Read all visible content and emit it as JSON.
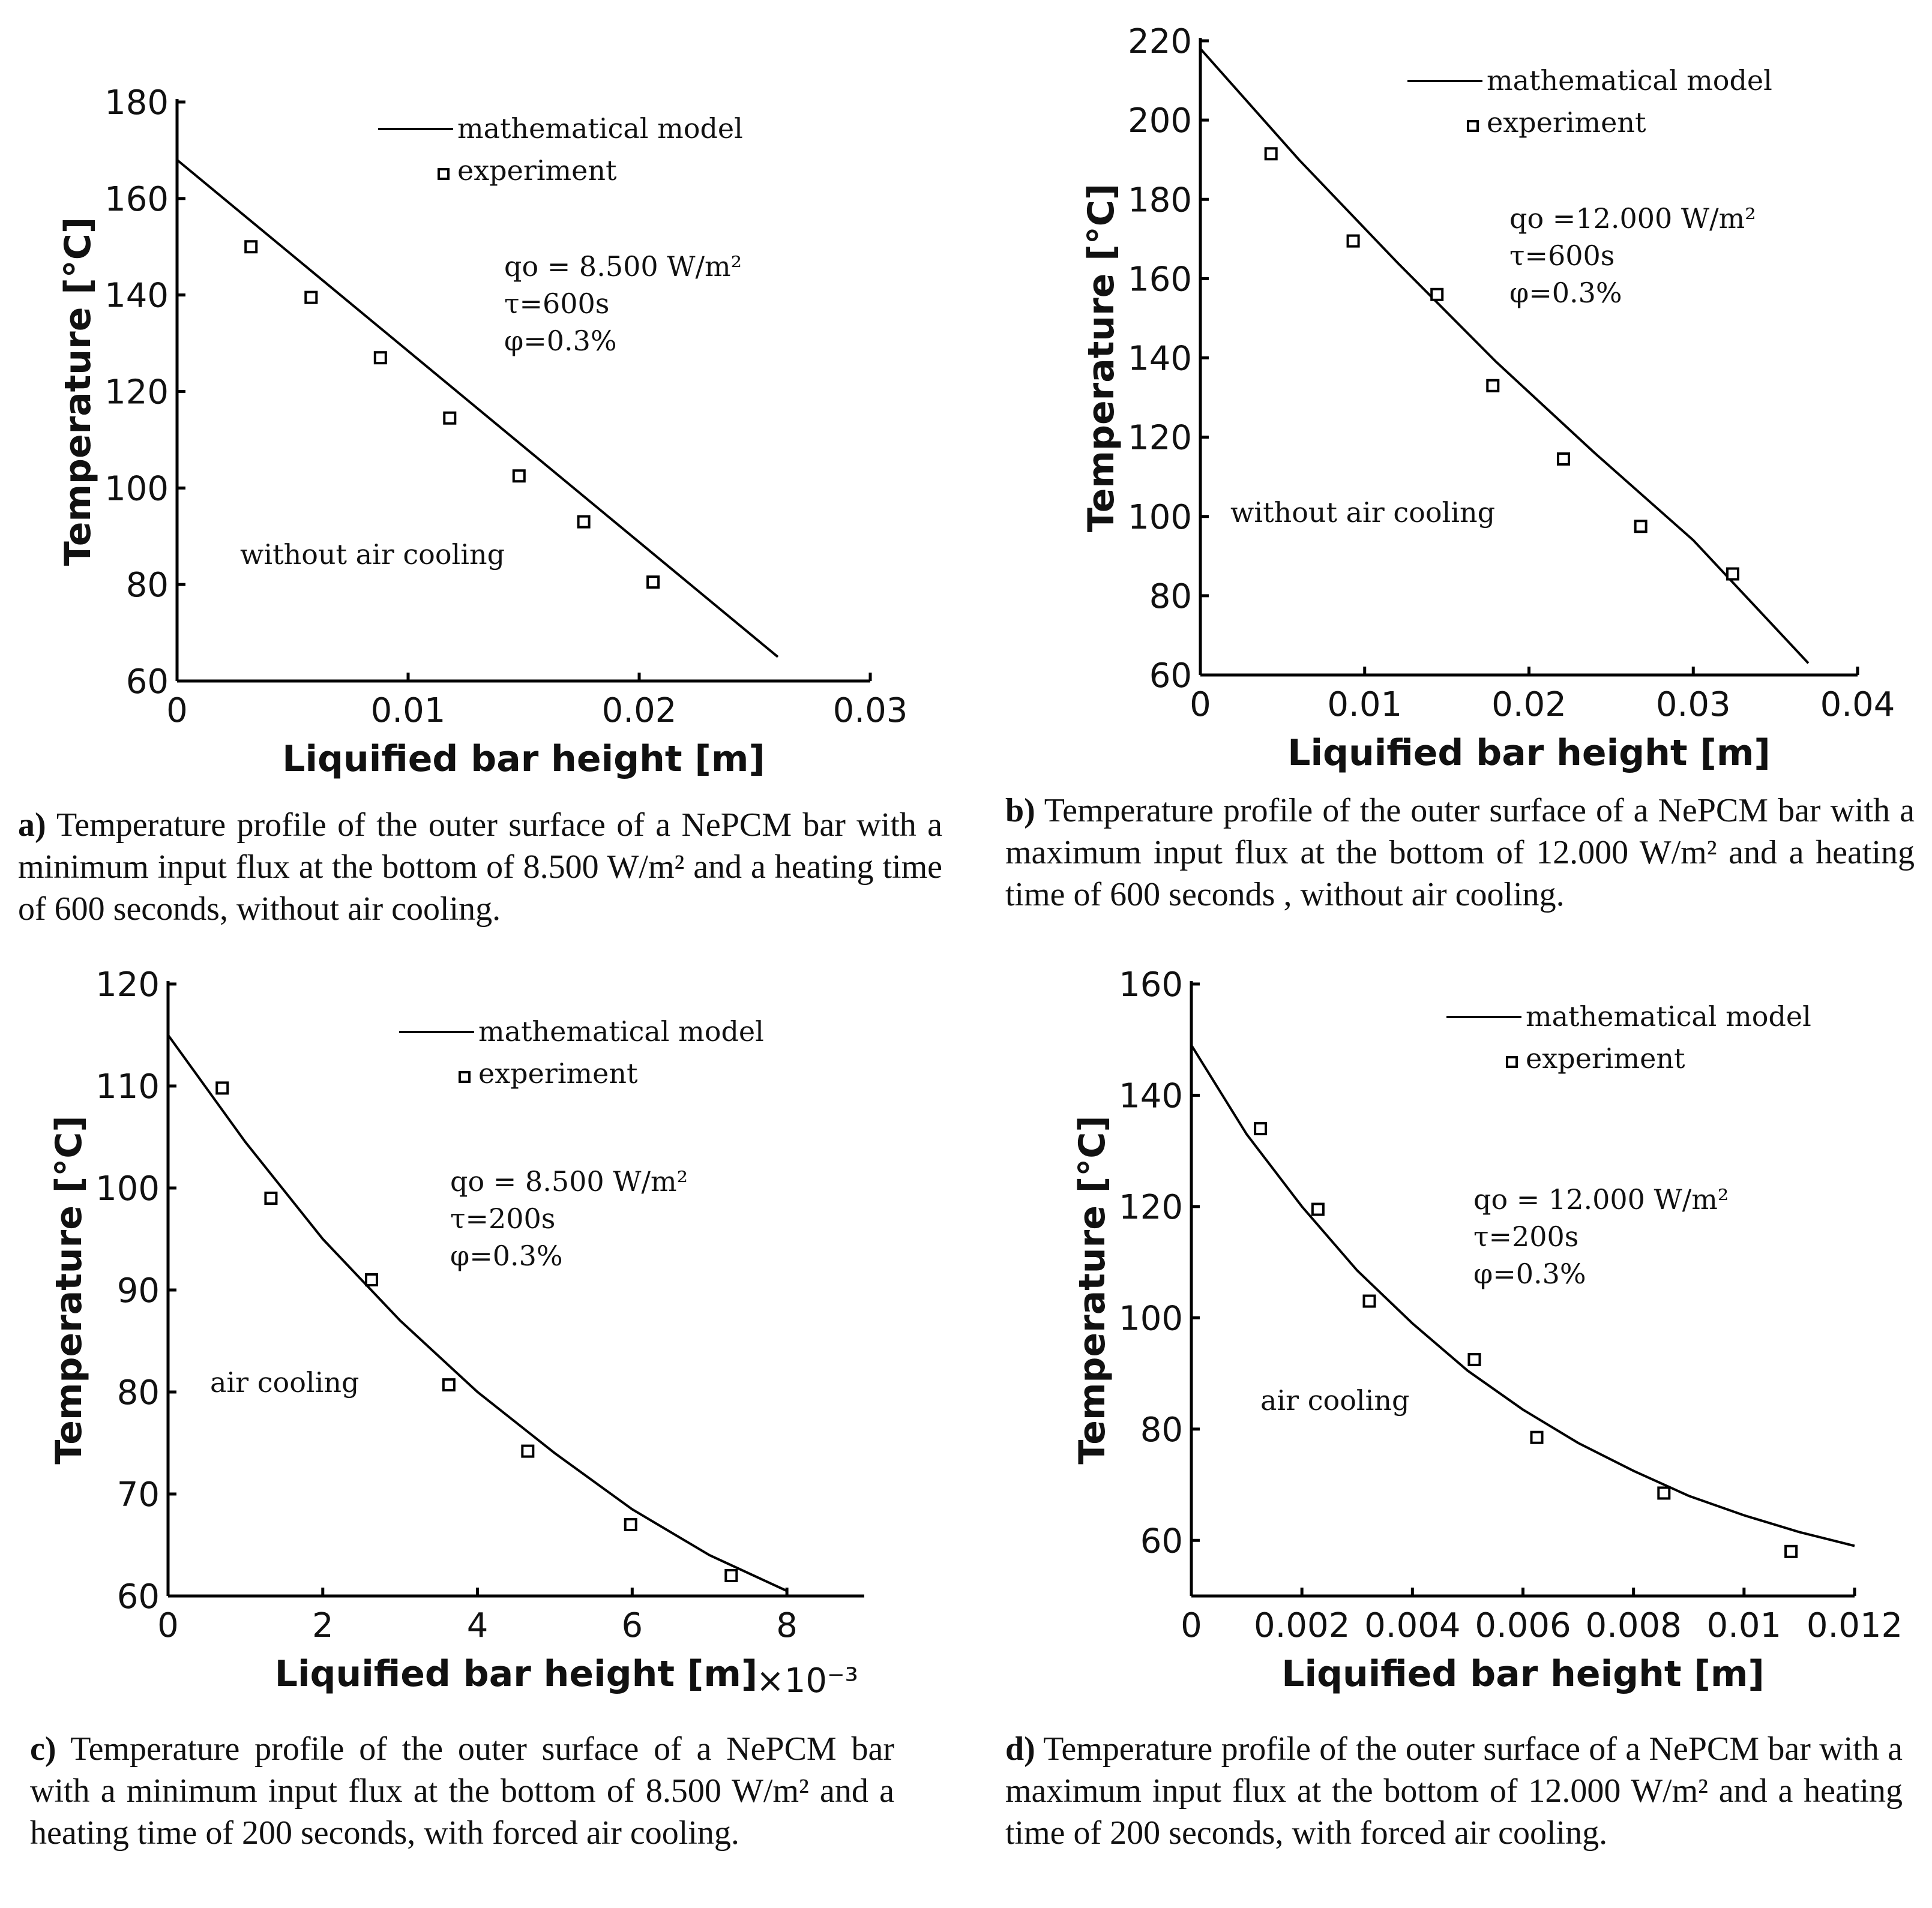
{
  "chart_data": [
    {
      "id": "a",
      "type": "line",
      "xlabel": "Liquified bar height [m]",
      "ylabel": "Temperature [°C]",
      "xlim": [
        0,
        0.03
      ],
      "ylim": [
        60,
        180
      ],
      "xticks": [
        0,
        0.01,
        0.02,
        0.03
      ],
      "xtick_labels": [
        "0",
        "0.01",
        "0.02",
        "0.03"
      ],
      "yticks": [
        60,
        80,
        100,
        120,
        140,
        160,
        180
      ],
      "ytick_labels": [
        "60",
        "80",
        "100",
        "120",
        "140",
        "160",
        "180"
      ],
      "x_exponent_label": "",
      "legend_placement": "top-right",
      "series": [
        {
          "name": "mathematical model",
          "style": "line",
          "x": [
            0,
            0.026
          ],
          "y": [
            168,
            65
          ]
        },
        {
          "name": "experiment",
          "style": "marker",
          "x": [
            0.0032,
            0.0058,
            0.0088,
            0.0118,
            0.0148,
            0.0176,
            0.0206
          ],
          "y": [
            150,
            139.5,
            127,
            114.5,
            102.5,
            93,
            80.5
          ]
        }
      ],
      "params": [
        "qo = 8.500 W/m²",
        "τ=600s",
        "φ=0.3%"
      ],
      "note": "without air cooling",
      "caption": {
        "label": "a)",
        "text": "Temperature profile of the outer surface of a NePCM bar with a minimum input flux at the bottom of 8.500 W/m² and a heating time of 600 seconds, without air cooling."
      }
    },
    {
      "id": "b",
      "type": "line",
      "xlabel": "Liquified bar height [m]",
      "ylabel": "Temperature [°C]",
      "xlim": [
        0,
        0.04
      ],
      "ylim": [
        60,
        220
      ],
      "xticks": [
        0,
        0.01,
        0.02,
        0.03,
        0.04
      ],
      "xtick_labels": [
        "0",
        "0.01",
        "0.02",
        "0.03",
        "0.04"
      ],
      "yticks": [
        60,
        80,
        100,
        120,
        140,
        160,
        180,
        200,
        220
      ],
      "ytick_labels": [
        "60",
        "80",
        "100",
        "120",
        "140",
        "160",
        "180",
        "200",
        "220"
      ],
      "x_exponent_label": "",
      "legend_placement": "top-right",
      "series": [
        {
          "name": "mathematical model",
          "style": "line",
          "x": [
            0,
            0.006,
            0.012,
            0.018,
            0.024,
            0.03,
            0.037
          ],
          "y": [
            218,
            190,
            164,
            139,
            116,
            94,
            63
          ]
        },
        {
          "name": "experiment",
          "style": "marker",
          "x": [
            0.0043,
            0.0093,
            0.0144,
            0.0178,
            0.0221,
            0.0268,
            0.0324
          ],
          "y": [
            191.5,
            169.5,
            156,
            133,
            114.5,
            97.5,
            85.5
          ]
        }
      ],
      "params": [
        "qo =12.000 W/m²",
        "τ=600s",
        "φ=0.3%"
      ],
      "note": "without air cooling",
      "caption": {
        "label": "b)",
        "text": "Temperature profile of the outer surface of a NePCM bar with a maximum input flux at the bottom of 12.000 W/m² and a heating time of 600 seconds , without air cooling."
      }
    },
    {
      "id": "c",
      "type": "line",
      "xlabel": "Liquified bar height [m]",
      "ylabel": "Temperature [°C]",
      "xlim": [
        0,
        9
      ],
      "ylim": [
        60,
        120
      ],
      "xticks": [
        0,
        2,
        4,
        6,
        8
      ],
      "xtick_labels": [
        "0",
        "2",
        "4",
        "6",
        "8"
      ],
      "yticks": [
        60,
        70,
        80,
        90,
        100,
        110,
        120
      ],
      "ytick_labels": [
        "60",
        "70",
        "80",
        "90",
        "100",
        "110",
        "120"
      ],
      "x_exponent_label": "×10⁻³",
      "legend_placement": "top-right",
      "series": [
        {
          "name": "mathematical model",
          "style": "line",
          "x": [
            0,
            1,
            2,
            3,
            4,
            5,
            6,
            7,
            8
          ],
          "y": [
            115,
            104.5,
            95,
            87,
            80,
            74,
            68.5,
            64,
            60.5
          ]
        },
        {
          "name": "experiment",
          "style": "marker",
          "x": [
            0.7,
            1.33,
            2.63,
            3.63,
            4.65,
            5.98,
            7.28
          ],
          "y": [
            109.8,
            99,
            91,
            80.7,
            74.2,
            67,
            62
          ]
        }
      ],
      "params": [
        "qo = 8.500 W/m²",
        "τ=200s",
        "φ=0.3%"
      ],
      "note": "air cooling",
      "caption": {
        "label": "c)",
        "text": "Temperature profile of the outer surface of a NePCM bar with a minimum input flux at the bottom of 8.500 W/m² and a heating time of 200 seconds, with forced air cooling."
      }
    },
    {
      "id": "d",
      "type": "line",
      "xlabel": "Liquified bar height [m]",
      "ylabel": "Temperature [°C]",
      "xlim": [
        0,
        0.012
      ],
      "ylim": [
        50,
        160
      ],
      "xticks": [
        0,
        0.002,
        0.004,
        0.006,
        0.008,
        0.01,
        0.012
      ],
      "xtick_labels": [
        "0",
        "0.002",
        "0.004",
        "0.006",
        "0.008",
        "0.01",
        "0.012"
      ],
      "yticks": [
        60,
        80,
        100,
        120,
        140,
        160
      ],
      "ytick_labels": [
        "60",
        "80",
        "100",
        "120",
        "140",
        "160"
      ],
      "x_exponent_label": "",
      "legend_placement": "top-right",
      "series": [
        {
          "name": "mathematical model",
          "style": "line",
          "x": [
            0,
            0.001,
            0.002,
            0.003,
            0.004,
            0.005,
            0.006,
            0.007,
            0.008,
            0.009,
            0.01,
            0.011,
            0.012
          ],
          "y": [
            149,
            133,
            120,
            108.5,
            99,
            90.5,
            83.5,
            77.5,
            72.5,
            68,
            64.5,
            61.5,
            59
          ]
        },
        {
          "name": "experiment",
          "style": "marker",
          "x": [
            0.00125,
            0.00229,
            0.00322,
            0.00512,
            0.00625,
            0.00855,
            0.01085
          ],
          "y": [
            134,
            119.5,
            103,
            92.5,
            78.5,
            68.5,
            58
          ]
        }
      ],
      "params": [
        "qo = 12.000 W/m²",
        "τ=200s",
        "φ=0.3%"
      ],
      "note": "air cooling",
      "caption": {
        "label": "d)",
        "text": "Temperature profile of the outer surface of a NePCM bar with a maximum input flux at the bottom of 12.000 W/m² and a heating time of 200 seconds, with forced air cooling."
      }
    }
  ]
}
